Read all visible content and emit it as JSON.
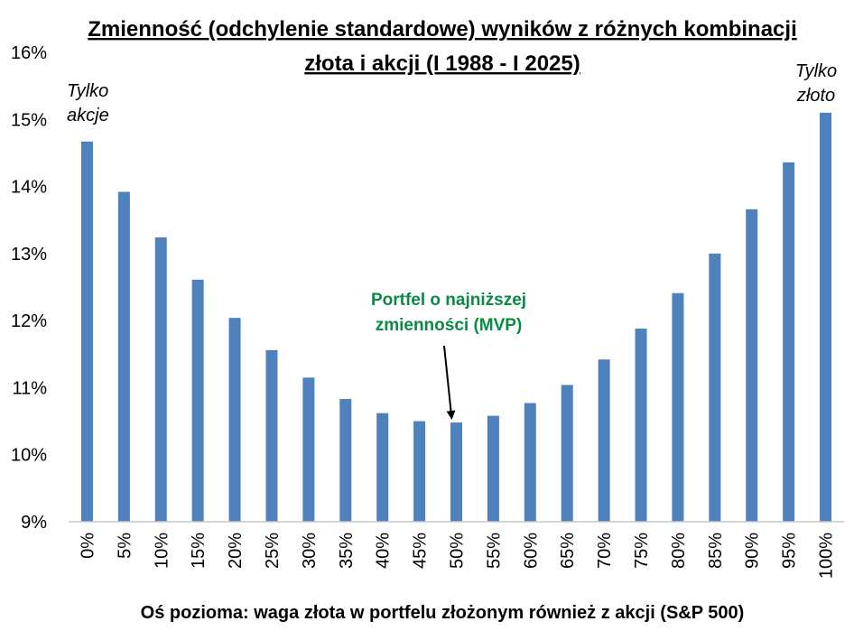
{
  "chart_data": {
    "type": "bar",
    "title_lines": [
      "Zmienność (odchylenie standardowe) wyników z różnych kombinacji",
      "złota i akcji (I 1988 - I 2025)"
    ],
    "xlabel": "Oś pozioma: waga złota w portfelu złożonym również z akcji (S&P 500)",
    "ylabel": "",
    "categories": [
      "0%",
      "5%",
      "10%",
      "15%",
      "20%",
      "25%",
      "30%",
      "35%",
      "40%",
      "45%",
      "50%",
      "55%",
      "60%",
      "65%",
      "70%",
      "75%",
      "80%",
      "85%",
      "90%",
      "95%",
      "100%"
    ],
    "values": [
      14.67,
      13.92,
      13.24,
      12.61,
      12.04,
      11.56,
      11.15,
      10.83,
      10.62,
      10.5,
      10.48,
      10.58,
      10.77,
      11.04,
      11.42,
      11.88,
      12.41,
      13.0,
      13.66,
      14.36,
      15.1
    ],
    "y_ticks": [
      "9%",
      "10%",
      "11%",
      "12%",
      "13%",
      "14%",
      "15%",
      "16%"
    ],
    "ylim": [
      9,
      16
    ],
    "grid": false,
    "bar_color": "#4f81bd",
    "annotations": {
      "left": [
        "Tylko",
        "akcje"
      ],
      "right": [
        "Tylko",
        "złoto"
      ],
      "mvp": [
        "Portfel o najniższej",
        "zmienności (MVP)"
      ],
      "mvp_color": "#0b8a44"
    }
  }
}
